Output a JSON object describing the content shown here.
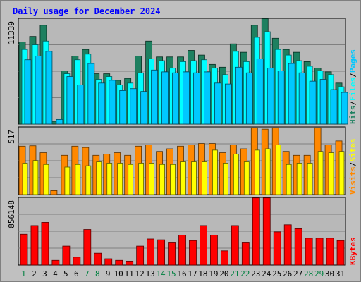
{
  "chart_data": [
    {
      "type": "bar",
      "title": "Daily usage for December 2024",
      "ymax_label": "11339",
      "ymax": 11339,
      "right_labels": [
        "Pages",
        "Files",
        "Hits"
      ],
      "categories": [
        "1",
        "2",
        "3",
        "4",
        "5",
        "6",
        "7",
        "8",
        "9",
        "10",
        "11",
        "12",
        "13",
        "14",
        "15",
        "16",
        "17",
        "18",
        "19",
        "20",
        "21",
        "22",
        "23",
        "24",
        "25",
        "26",
        "27",
        "28",
        "29",
        "30",
        "31"
      ],
      "series": [
        {
          "name": "Hits",
          "color": "#1e8060",
          "values": [
            8800,
            9400,
            10600,
            300,
            5700,
            7300,
            8000,
            5400,
            5400,
            4700,
            4900,
            7300,
            8900,
            7200,
            7200,
            7200,
            7900,
            7400,
            6400,
            6100,
            8600,
            7700,
            10600,
            11300,
            9200,
            8000,
            7700,
            6700,
            6000,
            5600,
            4400
          ]
        },
        {
          "name": "Files",
          "color": "#00ffff",
          "values": [
            8000,
            8500,
            8900,
            0,
            5400,
            6900,
            7500,
            4800,
            5100,
            4200,
            4400,
            5500,
            7000,
            6800,
            6000,
            6700,
            6800,
            6900,
            6000,
            5300,
            7800,
            6700,
            9300,
            9900,
            8000,
            7400,
            6800,
            6200,
            5700,
            5300,
            4000
          ]
        },
        {
          "name": "Pages",
          "color": "#00c8ff",
          "values": [
            6900,
            7300,
            7800,
            500,
            5100,
            4200,
            6500,
            4400,
            4700,
            3600,
            3800,
            3500,
            5800,
            5600,
            5500,
            5600,
            5500,
            5600,
            4400,
            4300,
            6100,
            5500,
            7000,
            6000,
            5700,
            6500,
            5500,
            4600,
            4800,
            3700,
            3400
          ]
        }
      ]
    },
    {
      "type": "bar",
      "ymax_label": "517",
      "ymax": 517,
      "right_labels": [
        "Sites",
        "Visits"
      ],
      "categories": [
        "1",
        "2",
        "3",
        "4",
        "5",
        "6",
        "7",
        "8",
        "9",
        "10",
        "11",
        "12",
        "13",
        "14",
        "15",
        "16",
        "17",
        "18",
        "19",
        "20",
        "21",
        "22",
        "23",
        "24",
        "25",
        "26",
        "27",
        "28",
        "29",
        "30",
        "31"
      ],
      "series": [
        {
          "name": "Visits",
          "color": "#ff8800",
          "values": [
            370,
            373,
            320,
            30,
            300,
            370,
            360,
            300,
            310,
            320,
            300,
            370,
            380,
            330,
            350,
            370,
            380,
            390,
            390,
            320,
            380,
            350,
            510,
            500,
            510,
            330,
            300,
            300,
            510,
            380,
            410
          ]
        },
        {
          "name": "Sites",
          "color": "#ffff00",
          "values": [
            240,
            260,
            230,
            0,
            210,
            230,
            220,
            250,
            240,
            240,
            230,
            240,
            240,
            230,
            230,
            250,
            250,
            250,
            340,
            240,
            310,
            250,
            340,
            350,
            380,
            230,
            240,
            240,
            330,
            320,
            330
          ]
        }
      ]
    },
    {
      "type": "bar",
      "ymax_label": "856148",
      "ymax": 856148,
      "right_labels": [
        "KBytes"
      ],
      "categories": [
        "1",
        "2",
        "3",
        "4",
        "5",
        "6",
        "7",
        "8",
        "9",
        "10",
        "11",
        "12",
        "13",
        "14",
        "15",
        "16",
        "17",
        "18",
        "19",
        "20",
        "21",
        "22",
        "23",
        "24",
        "25",
        "26",
        "27",
        "28",
        "29",
        "30",
        "31"
      ],
      "series": [
        {
          "name": "KBytes",
          "color": "#ff0000",
          "values": [
            390000,
            500000,
            540000,
            60000,
            240000,
            100000,
            450000,
            150000,
            80000,
            60000,
            50000,
            240000,
            330000,
            320000,
            290000,
            380000,
            310000,
            500000,
            380000,
            180000,
            500000,
            290000,
            850000,
            850000,
            420000,
            510000,
            460000,
            340000,
            340000,
            340000,
            310000
          ]
        }
      ]
    }
  ],
  "weekend_days": [
    "1",
    "7",
    "8",
    "14",
    "15",
    "21",
    "22",
    "28",
    "29"
  ],
  "colors": {
    "background": "#c0c0c0",
    "plot_background": "#b8b8b8",
    "title": "#0000ff",
    "axis_text": "#000000",
    "weekday_label": "#000000",
    "weekend_label": "#008040",
    "grid": "#808080"
  }
}
